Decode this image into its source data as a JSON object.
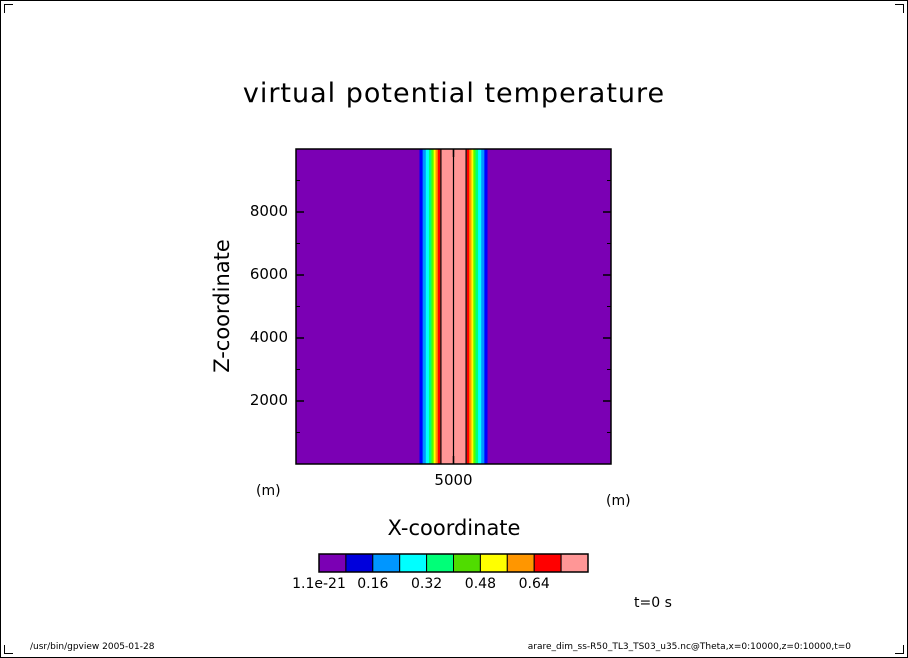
{
  "footer": {
    "program": "/usr/bin/gpview  2005-01-28",
    "source": "arare_dim_ss-R50_TL3_TS03_u35.nc@Theta,x=0:10000,z=0:10000,t=0"
  },
  "time_label": "t=0 s",
  "chart_data": {
    "type": "heatmap",
    "title": "virtual potential temperature",
    "xlabel": "X-coordinate",
    "ylabel": "Z-coordinate",
    "x_unit": "(m)",
    "y_unit": "(m)",
    "xlim": [
      0,
      10000
    ],
    "ylim": [
      0,
      10000
    ],
    "x_ticks": [
      5000
    ],
    "x_tick_labels": [
      "5000"
    ],
    "y_ticks": [
      2000,
      4000,
      6000,
      8000
    ],
    "y_tick_labels": [
      "2000",
      "4000",
      "6000",
      "8000"
    ],
    "background_color": "#7b00b4",
    "field_bands": [
      {
        "x_from": 0,
        "x_to": 3920,
        "color": "#7b00b4"
      },
      {
        "x_from": 3920,
        "x_to": 4020,
        "color": "#0000ff"
      },
      {
        "x_from": 4020,
        "x_to": 4120,
        "color": "#0096ff"
      },
      {
        "x_from": 4120,
        "x_to": 4220,
        "color": "#00ffff"
      },
      {
        "x_from": 4220,
        "x_to": 4300,
        "color": "#00ff78"
      },
      {
        "x_from": 4300,
        "x_to": 4370,
        "color": "#50ff00"
      },
      {
        "x_from": 4370,
        "x_to": 4430,
        "color": "#ffff00"
      },
      {
        "x_from": 4430,
        "x_to": 4500,
        "color": "#ff9600"
      },
      {
        "x_from": 4500,
        "x_to": 4580,
        "color": "#ff0000"
      },
      {
        "x_from": 4580,
        "x_to": 5420,
        "color": "#ff9696"
      },
      {
        "x_from": 5420,
        "x_to": 5500,
        "color": "#ff0000"
      },
      {
        "x_from": 5500,
        "x_to": 5570,
        "color": "#ff9600"
      },
      {
        "x_from": 5570,
        "x_to": 5630,
        "color": "#ffff00"
      },
      {
        "x_from": 5630,
        "x_to": 5700,
        "color": "#50ff00"
      },
      {
        "x_from": 5700,
        "x_to": 5780,
        "color": "#00ff78"
      },
      {
        "x_from": 5780,
        "x_to": 5880,
        "color": "#00ffff"
      },
      {
        "x_from": 5880,
        "x_to": 5980,
        "color": "#0096ff"
      },
      {
        "x_from": 5980,
        "x_to": 6080,
        "color": "#0000ff"
      },
      {
        "x_from": 6080,
        "x_to": 10000,
        "color": "#7b00b4"
      }
    ],
    "contour_lines_x": [
      4600,
      5000,
      5400
    ],
    "colorbar": {
      "colors": [
        "#7b00b4",
        "#0000dc",
        "#0096ff",
        "#00ffff",
        "#00ff78",
        "#50dc00",
        "#ffff00",
        "#ff9600",
        "#ff0000",
        "#ff9696"
      ],
      "levels": [
        0.0,
        0.08,
        0.16,
        0.24,
        0.32,
        0.4,
        0.48,
        0.56,
        0.64,
        0.72,
        0.8
      ],
      "labels": [
        "1.1e-21",
        "0.16",
        "0.32",
        "0.48",
        "0.64"
      ],
      "label_levels": [
        0.0,
        0.16,
        0.32,
        0.48,
        0.64
      ]
    }
  }
}
